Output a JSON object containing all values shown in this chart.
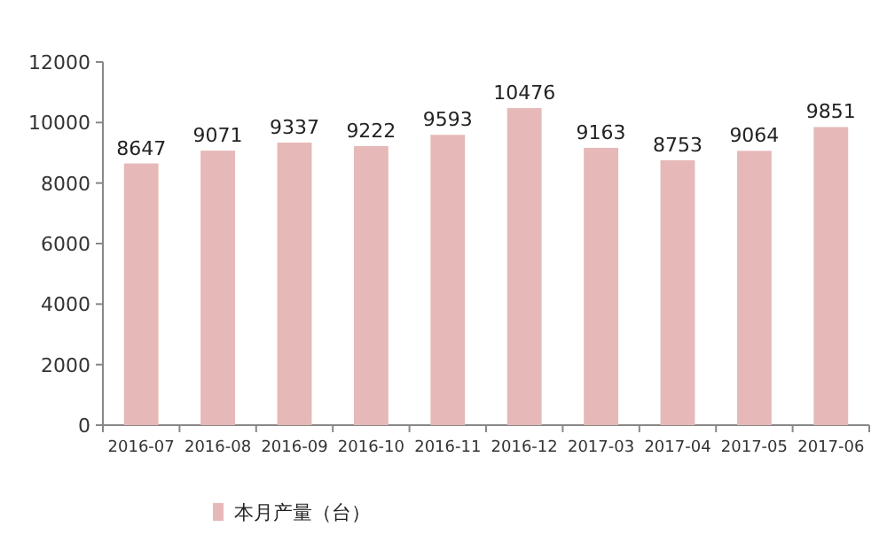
{
  "chart_data": {
    "type": "bar",
    "categories": [
      "2016-07",
      "2016-08",
      "2016-09",
      "2016-10",
      "2016-11",
      "2016-12",
      "2017-03",
      "2017-04",
      "2017-05",
      "2017-06"
    ],
    "series": [
      {
        "name": "本月产量（台）",
        "color": "#e6b9b8",
        "values": [
          8647,
          9071,
          9337,
          9222,
          9593,
          10476,
          9163,
          8753,
          9064,
          9851
        ]
      }
    ],
    "ylim": [
      0,
      12000
    ],
    "yticks": [
      0,
      2000,
      4000,
      6000,
      8000,
      10000,
      12000
    ],
    "data_labels": true,
    "grid": false,
    "legend": "bottom"
  }
}
